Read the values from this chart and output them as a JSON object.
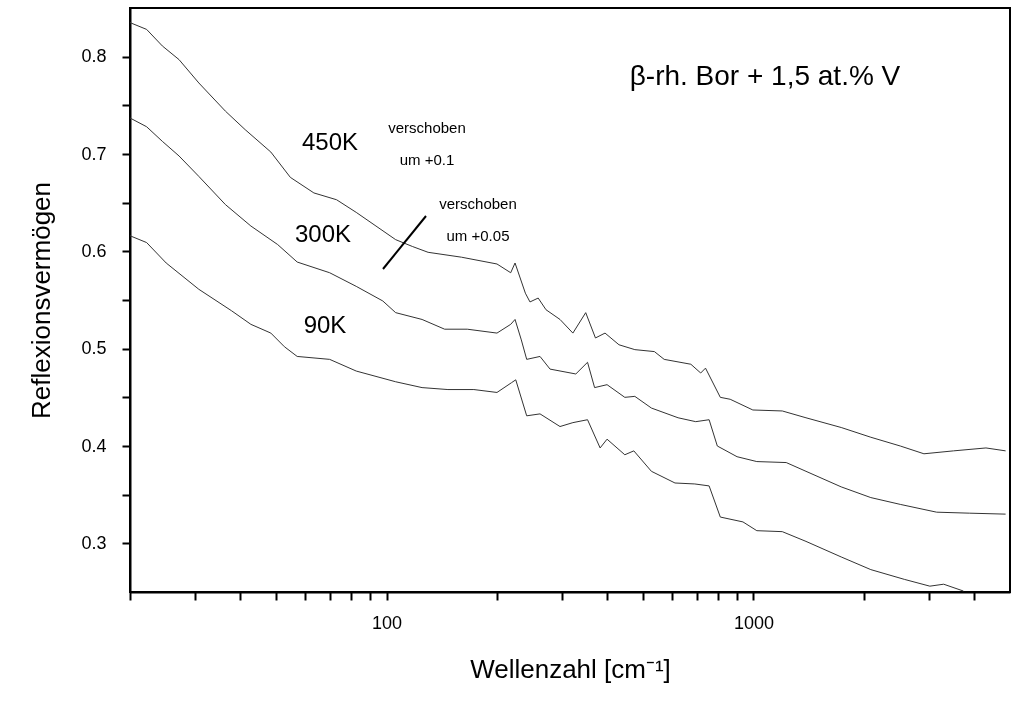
{
  "chart_data": {
    "type": "line",
    "title": "β-rh. Bor + 1,5 at.% V",
    "xlabel": "Wellenzahl [cm⁻¹]",
    "ylabel": "Reflexionsvermögen",
    "log": "x",
    "grid": false,
    "marker": "none",
    "line_style": "solid",
    "xlim": [
      20,
      5000
    ],
    "ylim": [
      0.25,
      0.85
    ],
    "xticks": [
      {
        "value": 20,
        "label": null
      },
      {
        "value": 30,
        "label": null
      },
      {
        "value": 40,
        "label": null
      },
      {
        "value": 50,
        "label": null
      },
      {
        "value": 60,
        "label": null
      },
      {
        "value": 70,
        "label": null
      },
      {
        "value": 80,
        "label": null
      },
      {
        "value": 90,
        "label": null
      },
      100,
      {
        "value": 200,
        "label": null
      },
      {
        "value": 300,
        "label": null
      },
      {
        "value": 400,
        "label": null
      },
      {
        "value": 500,
        "label": null
      },
      {
        "value": 600,
        "label": null
      },
      {
        "value": 700,
        "label": null
      },
      {
        "value": 800,
        "label": null
      },
      {
        "value": 900,
        "label": null
      },
      1000,
      {
        "value": 2000,
        "label": null
      },
      {
        "value": 3000,
        "label": null
      },
      {
        "value": 4000,
        "label": null
      }
    ],
    "yticks": [
      0.3,
      {
        "value": 0.35,
        "label": null
      },
      0.4,
      {
        "value": 0.45,
        "label": null
      },
      0.5,
      {
        "value": 0.55,
        "label": null
      },
      0.6,
      {
        "value": 0.65,
        "label": null
      },
      0.7,
      {
        "value": 0.75,
        "label": null
      },
      0.8
    ],
    "series": [
      {
        "color": "#333333",
        "x": [
          20,
          22.2,
          24.5,
          27.2,
          30.8,
          36.4,
          41.2,
          48.4,
          54.7,
          63.4,
          73.1,
          82.7,
          93.6,
          105.9,
          117.6,
          129.8,
          160,
          200,
          218,
          224,
          239,
          246,
          259,
          272,
          297,
          322,
          349,
          371,
          394,
          430,
          475,
          537,
          571,
          675,
          718,
          740,
          812,
          864,
          996,
          1198,
          1390,
          1734,
          2088,
          2512,
          2914,
          3508,
          4300,
          4864
        ],
        "values": [
          0.835,
          0.828,
          0.811,
          0.797,
          0.773,
          0.744,
          0.725,
          0.702,
          0.676,
          0.66,
          0.653,
          0.64,
          0.626,
          0.612,
          0.605,
          0.599,
          0.594,
          0.587,
          0.578,
          0.588,
          0.557,
          0.548,
          0.552,
          0.54,
          0.53,
          0.516,
          0.537,
          0.511,
          0.516,
          0.504,
          0.499,
          0.497,
          0.489,
          0.484,
          0.475,
          0.48,
          0.45,
          0.448,
          0.437,
          0.436,
          0.429,
          0.419,
          0.409,
          0.4,
          0.392,
          0.395,
          0.398,
          0.395
        ]
      },
      {
        "color": "#333333",
        "x": [
          20,
          22.2,
          24.5,
          27.2,
          30.8,
          36.4,
          42.7,
          50.5,
          57.1,
          70.0,
          82.7,
          97.7,
          105.9,
          125,
          144,
          166,
          200,
          218,
          224,
          233,
          241,
          262,
          279,
          328,
          353,
          369,
          399,
          446,
          475,
          527,
          623,
          696,
          757,
          797,
          902,
          1021,
          1228,
          1390,
          1734,
          2088,
          2512,
          3156,
          3873,
          4864
        ],
        "values": [
          0.737,
          0.728,
          0.713,
          0.698,
          0.677,
          0.648,
          0.626,
          0.607,
          0.589,
          0.578,
          0.564,
          0.549,
          0.537,
          0.53,
          0.52,
          0.52,
          0.516,
          0.525,
          0.53,
          0.509,
          0.489,
          0.492,
          0.479,
          0.474,
          0.486,
          0.46,
          0.463,
          0.45,
          0.451,
          0.439,
          0.429,
          0.425,
          0.427,
          0.4,
          0.389,
          0.384,
          0.383,
          0.374,
          0.358,
          0.347,
          0.34,
          0.332,
          0.331,
          0.33
        ]
      },
      {
        "color": "#333333",
        "x": [
          20,
          22.2,
          25.1,
          30.8,
          37.8,
          42.7,
          48.4,
          52.7,
          57.1,
          70.0,
          82.7,
          105.9,
          125,
          147,
          173,
          200,
          219,
          225,
          241,
          262,
          297,
          322,
          353,
          382,
          399,
          446,
          472,
          527,
          611,
          692,
          757,
          812,
          936,
          1021,
          1198,
          1390,
          1734,
          2088,
          2576,
          3024,
          3298,
          3732
        ],
        "values": [
          0.616,
          0.609,
          0.588,
          0.561,
          0.539,
          0.525,
          0.516,
          0.502,
          0.492,
          0.489,
          0.477,
          0.466,
          0.46,
          0.458,
          0.458,
          0.455,
          0.465,
          0.468,
          0.431,
          0.433,
          0.42,
          0.424,
          0.427,
          0.398,
          0.407,
          0.391,
          0.395,
          0.374,
          0.362,
          0.361,
          0.359,
          0.327,
          0.322,
          0.313,
          0.312,
          0.302,
          0.286,
          0.273,
          0.263,
          0.256,
          0.258,
          0.251
        ]
      }
    ],
    "annotations": [
      "450K",
      "verschoben\num +0.1",
      "300K",
      "verschoben\num +0.05",
      "90K"
    ]
  }
}
